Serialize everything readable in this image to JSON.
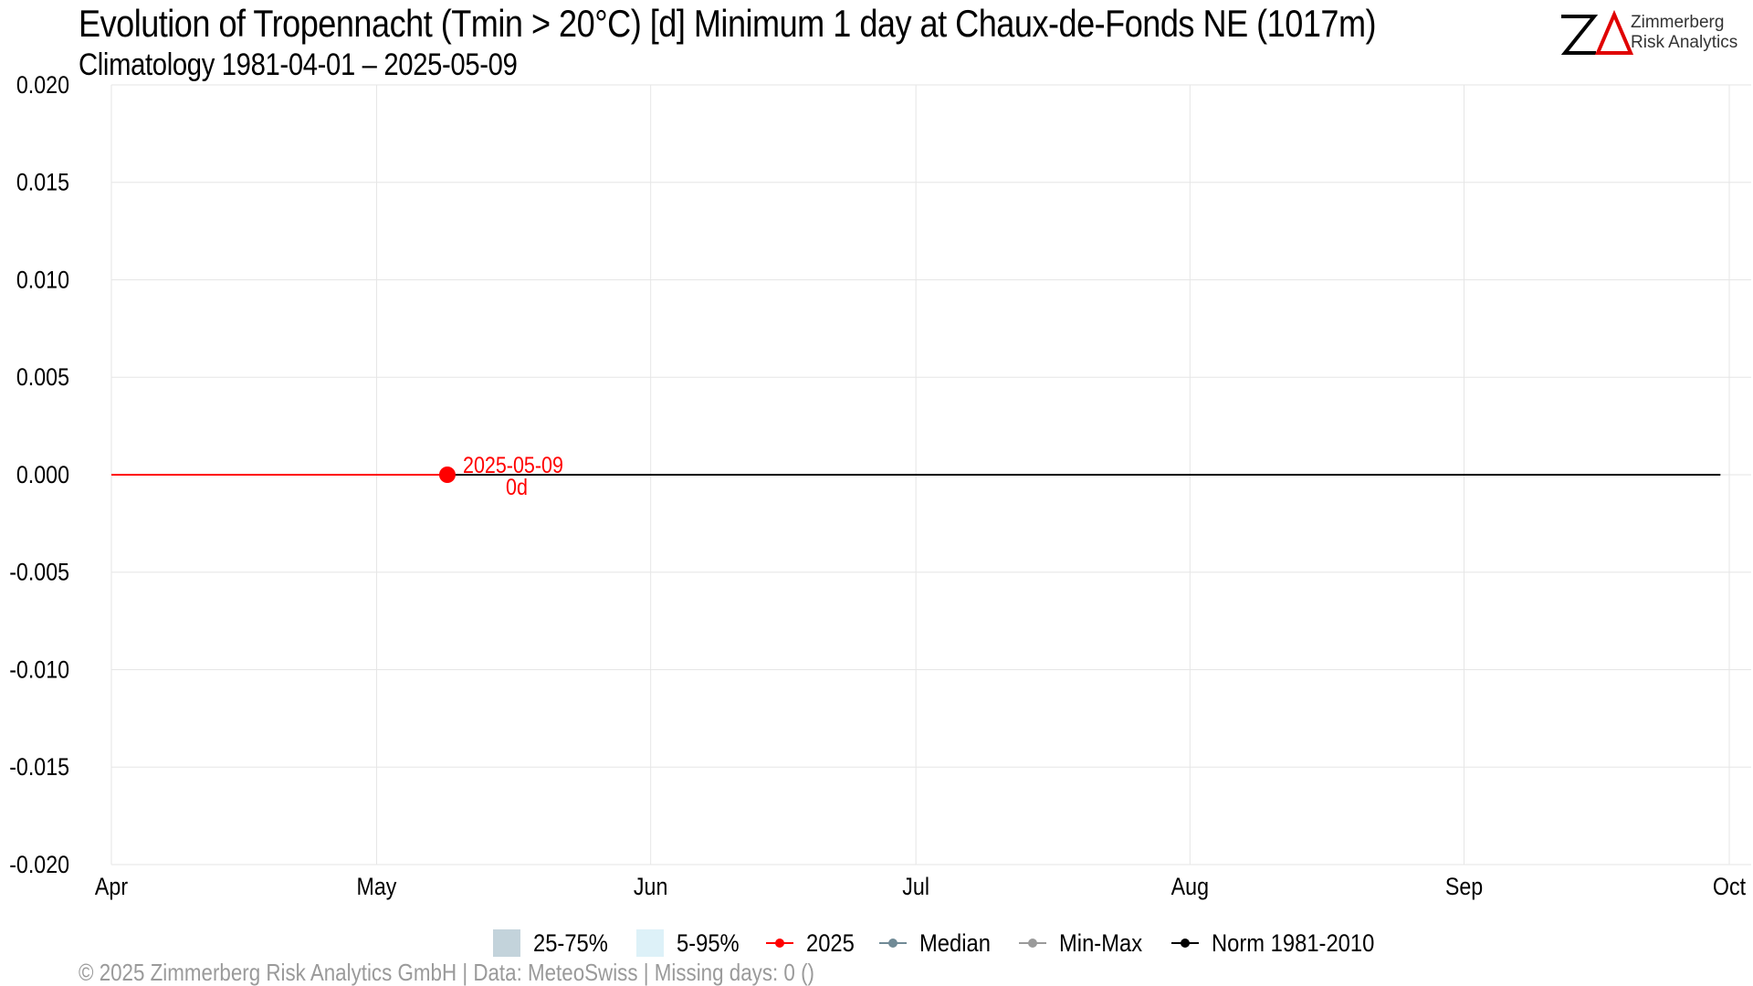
{
  "header": {
    "title": "Evolution of Tropennacht (Tmin > 20°C) [d] Minimum 1 day at Chaux-de-Fonds  NE (1017m)",
    "subtitle": "Climatology 1981-04-01 – 2025-05-09"
  },
  "logo": {
    "name_line1": "Zimmerberg",
    "name_line2": "Risk Analytics"
  },
  "chart_data": {
    "type": "line",
    "x_axis": {
      "range": [
        "2025-04-01",
        "2025-10-01"
      ],
      "ticks": [
        {
          "date": "2025-04-01",
          "label": "Apr"
        },
        {
          "date": "2025-05-01",
          "label": "May"
        },
        {
          "date": "2025-06-01",
          "label": "Jun"
        },
        {
          "date": "2025-07-01",
          "label": "Jul"
        },
        {
          "date": "2025-08-01",
          "label": "Aug"
        },
        {
          "date": "2025-09-01",
          "label": "Sep"
        },
        {
          "date": "2025-10-01",
          "label": "Oct"
        }
      ]
    },
    "y_axis": {
      "range": [
        -0.02,
        0.02
      ],
      "ticks": [
        {
          "value": 0.02,
          "label": "0.020"
        },
        {
          "value": 0.015,
          "label": "0.015"
        },
        {
          "value": 0.01,
          "label": "0.010"
        },
        {
          "value": 0.005,
          "label": "0.005"
        },
        {
          "value": 0,
          "label": "0.000"
        },
        {
          "value": -0.005,
          "label": "-0.005"
        },
        {
          "value": -0.01,
          "label": "-0.010"
        },
        {
          "value": -0.015,
          "label": "-0.015"
        },
        {
          "value": -0.02,
          "label": "-0.020"
        }
      ]
    },
    "grid": true,
    "series": [
      {
        "name": "2025",
        "color": "#ff0000",
        "x": [
          "2025-04-01",
          "2025-05-09"
        ],
        "y": [
          0,
          0
        ]
      },
      {
        "name": "Norm 1981-2010",
        "color": "#000000",
        "x": [
          "2025-05-09",
          "2025-09-30"
        ],
        "y": [
          0,
          0
        ]
      }
    ],
    "highlight_point": {
      "x": "2025-05-09",
      "y": 0,
      "color": "#ff0000"
    },
    "annotation": {
      "date_label": "2025-05-09",
      "value_label": "0d"
    },
    "legend": {
      "placement": "bottom",
      "items": [
        {
          "label": "25-75%",
          "kind": "box",
          "color": "#c3d3db"
        },
        {
          "label": "5-95%",
          "kind": "box",
          "color": "#ddf1f8"
        },
        {
          "label": "2025",
          "kind": "line",
          "color": "#ff0000"
        },
        {
          "label": "Median",
          "kind": "line",
          "color": "#708a96"
        },
        {
          "label": "Min-Max",
          "kind": "line",
          "color": "#9a9a9a"
        },
        {
          "label": "Norm 1981-2010",
          "kind": "line",
          "color": "#000000"
        }
      ]
    }
  },
  "footer": {
    "text": "©  2025 Zimmerberg Risk Analytics GmbH | Data: MeteoSwiss | Missing days: 0 ()"
  }
}
